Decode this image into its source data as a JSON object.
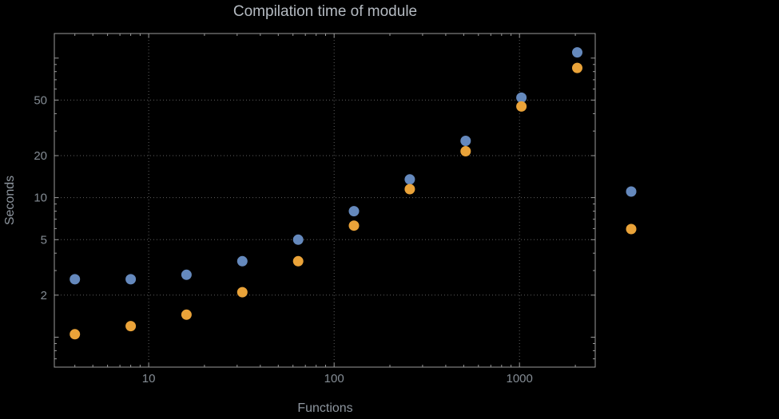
{
  "chart_data": {
    "type": "scatter",
    "title": "Compilation time of module",
    "xlabel": "Functions",
    "ylabel": "Seconds",
    "x_scale": "log",
    "y_scale": "log",
    "xlim": [
      3.1,
      2560
    ],
    "ylim": [
      0.61,
      150
    ],
    "grid": "dotted",
    "xticks": [
      10,
      100,
      1000
    ],
    "yticks": [
      2,
      5,
      10,
      20,
      50
    ],
    "x": [
      4,
      8,
      16,
      32,
      64,
      128,
      256,
      512,
      1024,
      2048
    ],
    "series": [
      {
        "key": "blue",
        "label": "",
        "color": "#6589bd",
        "values": [
          2.6,
          2.6,
          2.8,
          3.5,
          5.0,
          8.0,
          13.5,
          25.5,
          52,
          110
        ]
      },
      {
        "key": "orange",
        "label": "",
        "color": "#eaa339",
        "values": [
          1.05,
          1.2,
          1.45,
          2.1,
          3.5,
          6.3,
          11.5,
          21.5,
          45,
          85
        ]
      }
    ],
    "legend_position": "right-outside",
    "marker_size": 13
  },
  "style": {
    "background": "#000000",
    "frame_color": "#9a9a9a",
    "grid_color": "#5f5f5f",
    "tick_label_color": "#848c94",
    "axis_label_color": "#8d959e",
    "title_color": "#b4bac1"
  }
}
